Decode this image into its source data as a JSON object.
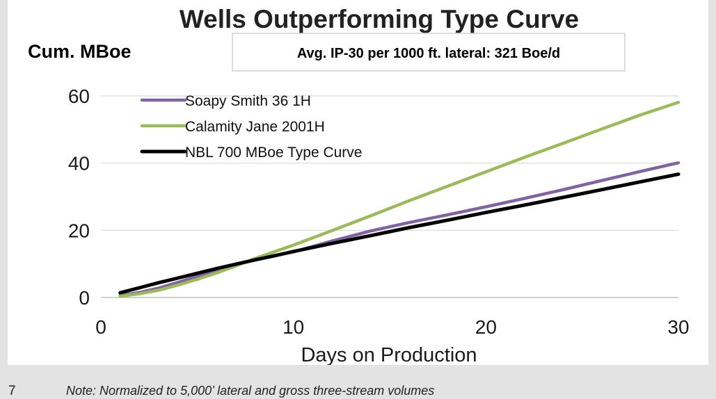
{
  "page_number": "7",
  "footnote": "Note: Normalized to 5,000’ lateral and gross three-stream volumes",
  "chart_data": {
    "type": "line",
    "title": "Wells Outperforming Type Curve",
    "ylabel": "Cum. MBoe",
    "xlabel": "Days on Production",
    "annotation": "Avg. IP-30 per 1000 ft. lateral: 321 Boe/d",
    "xlim": [
      0,
      30
    ],
    "ylim": [
      0,
      60
    ],
    "xticks": [
      0,
      10,
      20,
      30
    ],
    "yticks": [
      0,
      20,
      40,
      60
    ],
    "grid": "horizontal",
    "legend_position": "top-left",
    "series": [
      {
        "name": "Soapy Smith 36 1H",
        "color": "#8064a2",
        "x": [
          1,
          2,
          3,
          4,
          5,
          6,
          7,
          8,
          9,
          10,
          12,
          14,
          16,
          18,
          20,
          22,
          24,
          26,
          28,
          30
        ],
        "y": [
          0.6,
          1.5,
          2.8,
          4.5,
          6.3,
          8.1,
          9.8,
          11.2,
          12.5,
          13.6,
          16.8,
          19.8,
          22.3,
          24.6,
          27.0,
          29.5,
          32.1,
          34.8,
          37.5,
          40.1
        ]
      },
      {
        "name": "Calamity Jane 2001H",
        "color": "#9bbb59",
        "x": [
          1,
          2,
          3,
          4,
          5,
          6,
          7,
          8,
          9,
          10,
          12,
          14,
          16,
          18,
          20,
          22,
          24,
          26,
          28,
          30
        ],
        "y": [
          0.4,
          1.1,
          2.2,
          3.7,
          5.4,
          7.3,
          9.4,
          11.6,
          13.6,
          15.6,
          19.9,
          24.3,
          28.8,
          33.1,
          37.4,
          41.7,
          45.9,
          50.1,
          54.3,
          58.1
        ]
      },
      {
        "name": "NBL 700 MBoe Type Curve",
        "color": "#000000",
        "x": [
          1,
          2,
          3,
          4,
          5,
          6,
          7,
          8,
          9,
          10,
          12,
          14,
          16,
          18,
          20,
          22,
          24,
          26,
          28,
          30
        ],
        "y": [
          1.4,
          2.9,
          4.4,
          5.8,
          7.2,
          8.6,
          9.9,
          11.2,
          12.4,
          13.7,
          16.1,
          18.4,
          20.8,
          23.0,
          25.3,
          27.5,
          29.8,
          32.1,
          34.4,
          36.7
        ]
      }
    ]
  }
}
